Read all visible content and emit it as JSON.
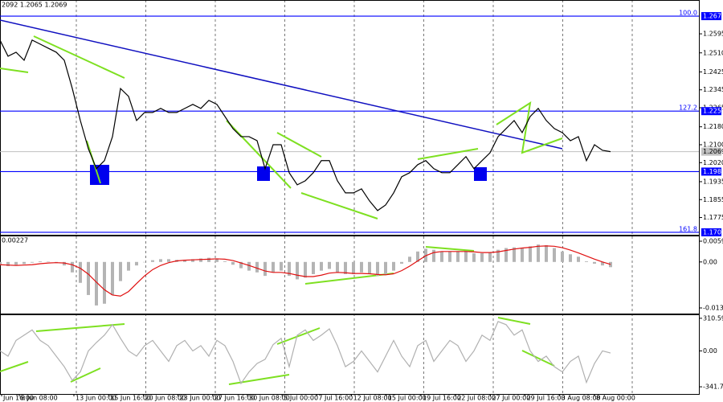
{
  "header": "2092 1.2065 1.2069",
  "time_axis": [
    "Jun 16:00",
    "8 Jun 08:00",
    "13 Jun 00:00",
    "15 Jun 16:00",
    "20 Jun 08:00",
    "23 Jun 00:00",
    "27 Jun 16:00",
    "30 Jun 08:00",
    "5 Jul 00:00",
    "7 Jul 16:00",
    "12 Jul 08:00",
    "15 Jul 00:00",
    "19 Jul 16:00",
    "22 Jul 08:00",
    "27 Jul 00:00",
    "29 Jul 16:00",
    "3 Aug 08:00",
    "8 Aug 00:00"
  ],
  "chart_data": [
    {
      "type": "line",
      "series": [
        {
          "name": "Close",
          "color": "#000000",
          "values": [
            1.2567,
            1.2495,
            1.2513,
            1.2477,
            1.2567,
            1.2549,
            1.2531,
            1.2513,
            1.2477,
            1.2351,
            1.2208,
            1.2082,
            1.1993,
            1.2029,
            1.2136,
            1.2351,
            1.2316,
            1.2208,
            1.2244,
            1.2244,
            1.2262,
            1.2244,
            1.2244,
            1.2262,
            1.228,
            1.2262,
            1.2298,
            1.228,
            1.2226,
            1.2172,
            1.2136,
            1.2136,
            1.2118,
            1.1993,
            1.21,
            1.21,
            1.1975,
            1.1921,
            1.1939,
            1.1975,
            1.2029,
            1.2029,
            1.1939,
            1.1885,
            1.1885,
            1.1903,
            1.1849,
            1.1806,
            1.1831,
            1.1885,
            1.1957,
            1.1975,
            1.2011,
            1.2029,
            1.1993,
            1.1975,
            1.1975,
            1.2011,
            1.2047,
            1.1993,
            1.2029,
            1.2064,
            1.2136,
            1.2172,
            1.2208,
            1.2154,
            1.2226,
            1.2262,
            1.2208,
            1.2172,
            1.2154,
            1.2118,
            1.2136,
            1.2029,
            1.21,
            1.2075,
            1.2069
          ]
        }
      ],
      "ylim": [
        1.1698,
        1.2746
      ],
      "yticks": [
        {
          "value": 1.2595,
          "label": "1.2595"
        },
        {
          "value": 1.251,
          "label": "1.2510"
        },
        {
          "value": 1.2425,
          "label": "1.2425"
        },
        {
          "value": 1.2345,
          "label": "1.2345"
        },
        {
          "value": 1.2265,
          "label": "1.2265"
        },
        {
          "value": 1.218,
          "label": "1.2180"
        },
        {
          "value": 1.21,
          "label": "1.2100"
        },
        {
          "value": 1.202,
          "label": "1.2020"
        },
        {
          "value": 1.1935,
          "label": "1.1935"
        },
        {
          "value": 1.1855,
          "label": "1.1855"
        },
        {
          "value": 1.1775,
          "label": "1.1775"
        }
      ],
      "levels": [
        {
          "value": 1.2674,
          "label": "1.2674",
          "fib": "100.0"
        },
        {
          "value": 1.225,
          "label": "1.2250",
          "fib": "127.2"
        },
        {
          "value": 1.198,
          "label": "1.1980"
        },
        {
          "value": 1.1709,
          "label": "1.1709",
          "fib": "161.8"
        }
      ],
      "last": {
        "value": 1.2069,
        "label": "1.2069"
      },
      "level_color": "#0000ff"
    },
    {
      "type": "bar",
      "caption": "0.00227",
      "series": [
        {
          "name": "MACD",
          "color": "#b4b4b4",
          "values": [
            -0.001,
            -0.0012,
            -0.0008,
            -0.0006,
            -0.0002,
            0.0002,
            0.0001,
            -0.0002,
            -0.001,
            -0.003,
            -0.006,
            -0.0095,
            -0.0125,
            -0.012,
            -0.0095,
            -0.0055,
            -0.0025,
            -0.001,
            0.0,
            0.0005,
            0.0008,
            0.0008,
            0.0006,
            0.0006,
            0.0008,
            0.001,
            0.0012,
            0.001,
            0.0002,
            -0.0008,
            -0.0018,
            -0.0025,
            -0.003,
            -0.004,
            -0.003,
            -0.0025,
            -0.004,
            -0.005,
            -0.0045,
            -0.0035,
            -0.0025,
            -0.002,
            -0.003,
            -0.0035,
            -0.0035,
            -0.003,
            -0.0035,
            -0.004,
            -0.0035,
            -0.0025,
            -0.0005,
            0.0015,
            0.003,
            0.0038,
            0.0035,
            0.003,
            0.003,
            0.003,
            0.0032,
            0.0025,
            0.0025,
            0.0028,
            0.0035,
            0.004,
            0.0042,
            0.004,
            0.0045,
            0.005,
            0.0048,
            0.004,
            0.003,
            0.0022,
            0.0015,
            0.0002,
            -0.0005,
            -0.001,
            -0.0015
          ]
        },
        {
          "name": "Signal",
          "color": "#e01010",
          "values": [
            -0.0008,
            -0.0009,
            -0.001,
            -0.0009,
            -0.0008,
            -0.0005,
            -0.0003,
            -0.0002,
            -0.0003,
            -0.0008,
            -0.0018,
            -0.0035,
            -0.0058,
            -0.008,
            -0.0095,
            -0.0098,
            -0.0085,
            -0.0062,
            -0.004,
            -0.0022,
            -0.001,
            -0.0002,
            0.0003,
            0.0005,
            0.0006,
            0.0007,
            0.0008,
            0.0009,
            0.0008,
            0.0004,
            -0.0003,
            -0.001,
            -0.0018,
            -0.0026,
            -0.003,
            -0.003,
            -0.0033,
            -0.0038,
            -0.0042,
            -0.0042,
            -0.0038,
            -0.0032,
            -0.003,
            -0.0031,
            -0.0033,
            -0.0033,
            -0.0034,
            -0.0036,
            -0.0037,
            -0.0034,
            -0.0025,
            -0.0012,
            0.0003,
            0.0018,
            0.0027,
            0.003,
            0.003,
            0.003,
            0.003,
            0.0029,
            0.0027,
            0.0027,
            0.0029,
            0.0033,
            0.0037,
            0.004,
            0.0042,
            0.0045,
            0.0046,
            0.0045,
            0.0041,
            0.0034,
            0.0026,
            0.0017,
            0.0008,
            0.0,
            -0.0007
          ]
        }
      ],
      "ylim": [
        -0.01483,
        0.00758
      ],
      "yticks": [
        0.00596,
        {
          "value": 0,
          "label": "0.00"
        },
        -0.01321
      ]
    },
    {
      "type": "line",
      "series": [
        {
          "name": "CCI",
          "color": "#b0b0b0",
          "values": [
            0,
            -50,
            100,
            150,
            200,
            100,
            50,
            -50,
            -150,
            -280,
            -200,
            0,
            80,
            150,
            250,
            120,
            0,
            -50,
            50,
            100,
            0,
            -100,
            50,
            100,
            0,
            50,
            -50,
            100,
            50,
            -100,
            -310,
            -200,
            -120,
            -80,
            60,
            120,
            -150,
            150,
            200,
            100,
            150,
            210,
            50,
            -150,
            -100,
            0,
            -100,
            -200,
            -50,
            100,
            -50,
            -150,
            50,
            100,
            -100,
            0,
            100,
            50,
            -100,
            0,
            150,
            100,
            280,
            250,
            150,
            200,
            0,
            -100,
            -50,
            -150,
            -200,
            -100,
            -50,
            -300,
            -120,
            0,
            -20
          ]
        }
      ],
      "ylim": [
        -410,
        348
      ],
      "yticks": [
        310.5959,
        {
          "value": 0,
          "label": "0.00"
        },
        -341.703
      ]
    }
  ]
}
